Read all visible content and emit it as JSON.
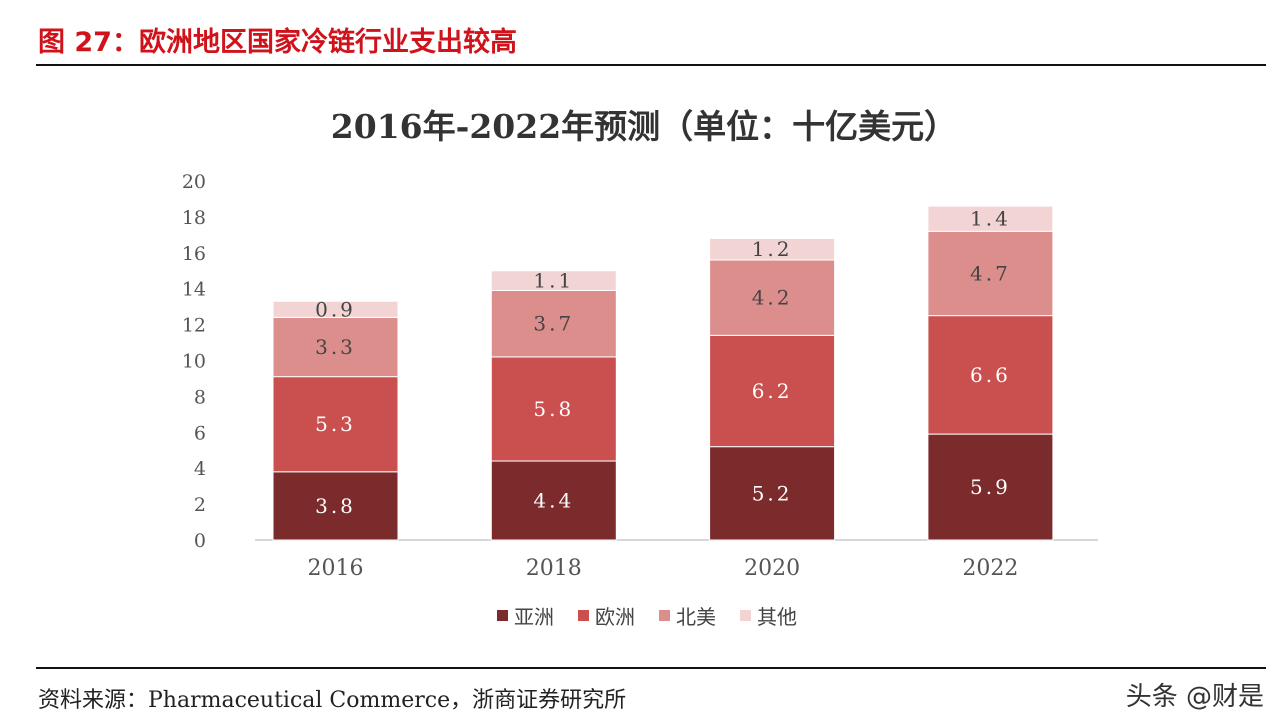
{
  "figure_title": "图 27：欧洲地区国家冷链行业支出较高",
  "source": "资料来源：Pharmaceutical Commerce，浙商证券研究所",
  "watermark": "头条 @财是",
  "chart_data": {
    "type": "bar",
    "stacked": true,
    "title": "2016年-2022年预测（单位：十亿美元）",
    "categories": [
      "2016",
      "2018",
      "2020",
      "2022"
    ],
    "ylim": [
      0,
      20
    ],
    "yticks": [
      0,
      2,
      4,
      6,
      8,
      10,
      12,
      14,
      16,
      18,
      20
    ],
    "grid": false,
    "legend_position": "bottom",
    "series": [
      {
        "name": "亚洲",
        "color": "#7b2b2b",
        "values": [
          3.8,
          4.4,
          5.2,
          5.9
        ]
      },
      {
        "name": "欧洲",
        "color": "#c9504f",
        "values": [
          5.3,
          5.8,
          6.2,
          6.6
        ]
      },
      {
        "name": "北美",
        "color": "#db8e8c",
        "values": [
          3.3,
          3.7,
          4.2,
          4.7
        ]
      },
      {
        "name": "其他",
        "color": "#f3d4d4",
        "values": [
          0.9,
          1.1,
          1.2,
          1.4
        ]
      }
    ]
  }
}
